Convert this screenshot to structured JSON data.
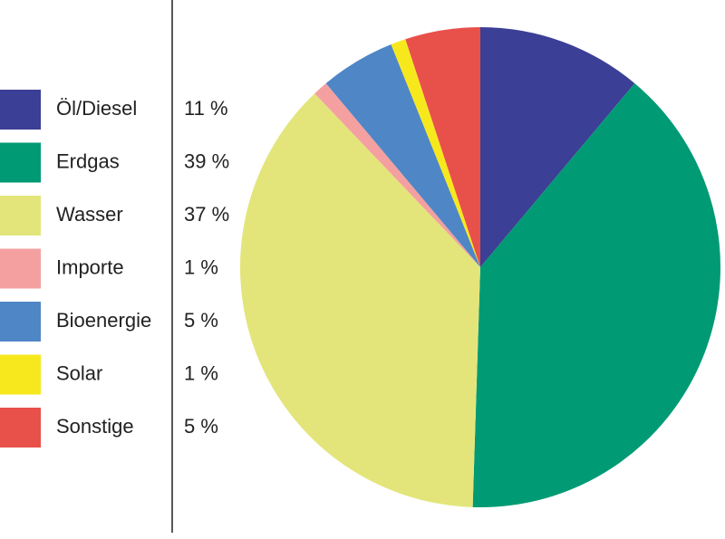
{
  "chart_data": {
    "type": "pie",
    "categories": [
      "Öl/Diesel",
      "Erdgas",
      "Wasser",
      "Importe",
      "Bioenergie",
      "Solar",
      "Sonstige"
    ],
    "values": [
      11,
      39,
      37,
      1,
      5,
      1,
      5
    ],
    "value_labels": [
      "11 %",
      "39 %",
      "37 %",
      "1 %",
      "5 %",
      "1 %",
      "5 %"
    ],
    "colors": [
      "#3b3f95",
      "#009a74",
      "#e3e57a",
      "#f4a0a0",
      "#4f86c6",
      "#f7e81e",
      "#e8504a"
    ]
  }
}
